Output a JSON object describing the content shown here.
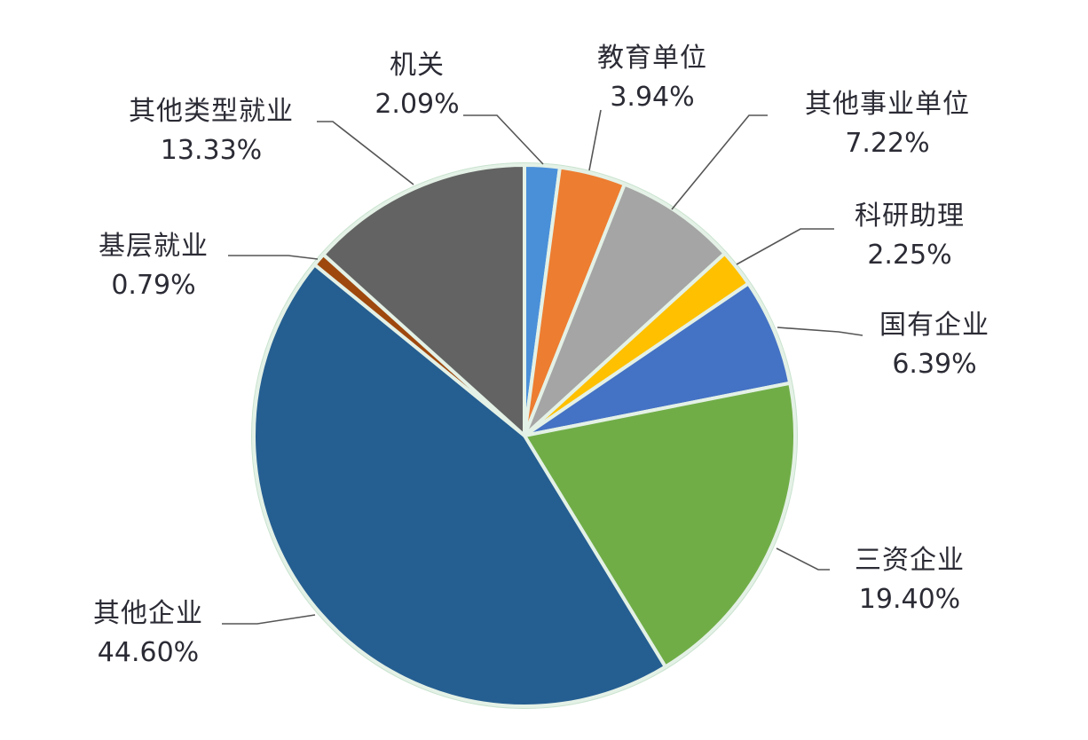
{
  "chart_data": {
    "type": "pie",
    "title": "",
    "start_angle_deg": 0,
    "direction": "clockwise",
    "slices": [
      {
        "label": "机关",
        "value": 2.09,
        "display": "2.09%",
        "color": "#4a90d9"
      },
      {
        "label": "教育单位",
        "value": 3.94,
        "display": "3.94%",
        "color": "#ed7d31"
      },
      {
        "label": "其他事业单位",
        "value": 7.22,
        "display": "7.22%",
        "color": "#a5a5a5"
      },
      {
        "label": "科研助理",
        "value": 2.25,
        "display": "2.25%",
        "color": "#ffc000"
      },
      {
        "label": "国有企业",
        "value": 6.39,
        "display": "6.39%",
        "color": "#4472c4"
      },
      {
        "label": "三资企业",
        "value": 19.4,
        "display": "19.40%",
        "color": "#70ad47"
      },
      {
        "label": "其他企业",
        "value": 44.6,
        "display": "44.60%",
        "color": "#255e91"
      },
      {
        "label": "基层就业",
        "value": 0.79,
        "display": "0.79%",
        "color": "#9e480e"
      },
      {
        "label": "其他类型就业",
        "value": 13.33,
        "display": "13.33%",
        "color": "#636363"
      }
    ],
    "legend": "none",
    "data_labels": "outside with leader lines"
  },
  "labels": [
    {
      "name": "机关",
      "pct": "2.09%"
    },
    {
      "name": "教育单位",
      "pct": "3.94%"
    },
    {
      "name": "其他事业单位",
      "pct": "7.22%"
    },
    {
      "name": "科研助理",
      "pct": "2.25%"
    },
    {
      "name": "国有企业",
      "pct": "6.39%"
    },
    {
      "name": "三资企业",
      "pct": "19.40%"
    },
    {
      "name": "其他企业",
      "pct": "44.60%"
    },
    {
      "name": "基层就业",
      "pct": "0.79%"
    },
    {
      "name": "其他类型就业",
      "pct": "13.33%"
    }
  ]
}
